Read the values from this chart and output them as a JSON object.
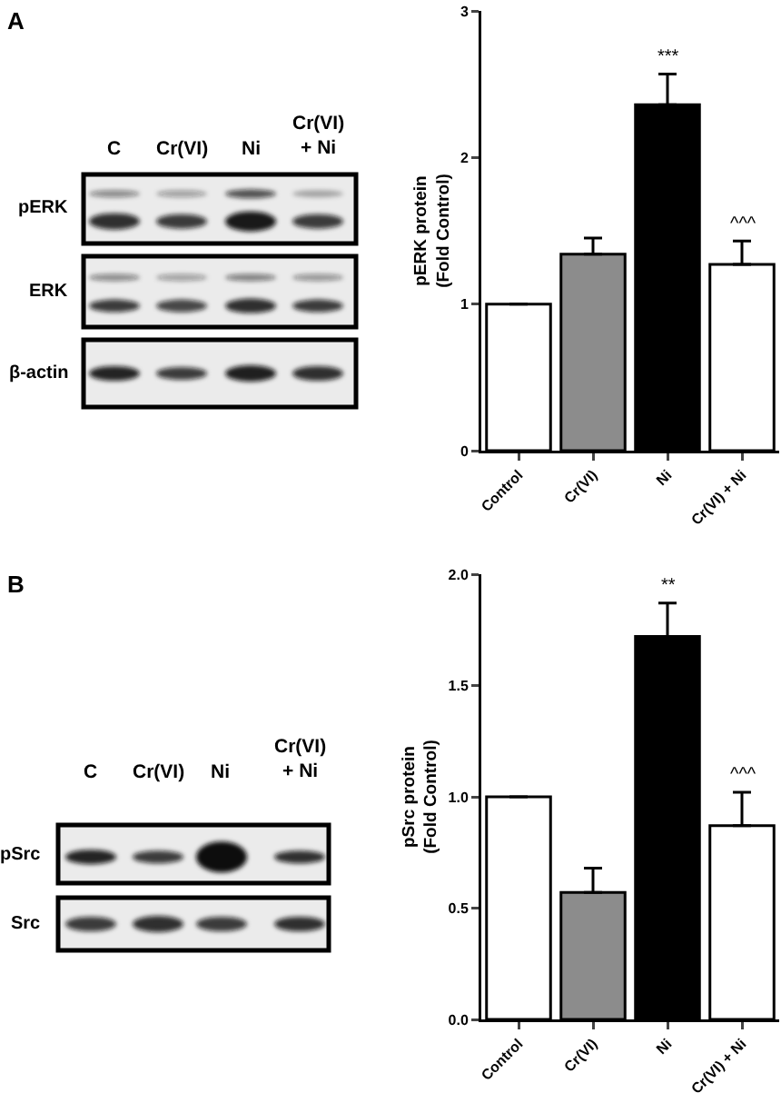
{
  "chart_data": [
    {
      "type": "bar",
      "ylabel": "pERK protein\n(Fold Control)",
      "categories": [
        "Control",
        "Cr(VI)",
        "Ni",
        "Cr(VI) + Ni"
      ],
      "values": [
        1,
        1.34,
        2.36,
        1.27
      ],
      "colors": [
        "#ffffff",
        "#8c8c8c",
        "#000000",
        "#ffffff"
      ],
      "errors": [
        null,
        [
          1.34,
          1.45
        ],
        [
          2.36,
          2.57
        ],
        [
          1.27,
          1.43
        ]
      ],
      "ylim": [
        0,
        3
      ],
      "yticks": [
        0,
        1,
        2,
        3
      ],
      "annotations": [
        {
          "text": "***",
          "x": "Ni",
          "y": 2.57
        },
        {
          "text": "^^^",
          "x": "Cr(VI) + Ni",
          "y": 1.43
        },
        "A",
        "C",
        "Cr(VI)",
        "Ni",
        "Cr(VI)\n+ Ni",
        "pERK",
        "ERK",
        "β-actin"
      ]
    },
    {
      "type": "bar",
      "ylabel": "pSrc protein\n(Fold Control)",
      "categories": [
        "Control",
        "Cr(VI)",
        "Ni",
        "Cr(VI) + Ni"
      ],
      "values": [
        1,
        0.57,
        1.72,
        0.87
      ],
      "colors": [
        "#ffffff",
        "#8c8c8c",
        "#000000",
        "#ffffff"
      ],
      "errors": [
        null,
        [
          0.57,
          0.68
        ],
        [
          1.72,
          1.87
        ],
        [
          0.87,
          1.02
        ]
      ],
      "ylim": [
        0,
        2
      ],
      "yticks": [
        {
          "value": 0,
          "label": "0.0"
        },
        0.5,
        {
          "value": 1,
          "label": "1.0"
        },
        1.5,
        {
          "value": 2,
          "label": "2.0"
        }
      ],
      "annotations": [
        {
          "text": "**",
          "x": "Ni",
          "y": 1.87
        },
        {
          "text": "^^^",
          "x": "Cr(VI) + Ni",
          "y": 1.02
        },
        "B",
        "C",
        "Cr(VI)",
        "Ni",
        "Cr(VI)\n+ Ni",
        "pSrc",
        "Src"
      ]
    }
  ]
}
